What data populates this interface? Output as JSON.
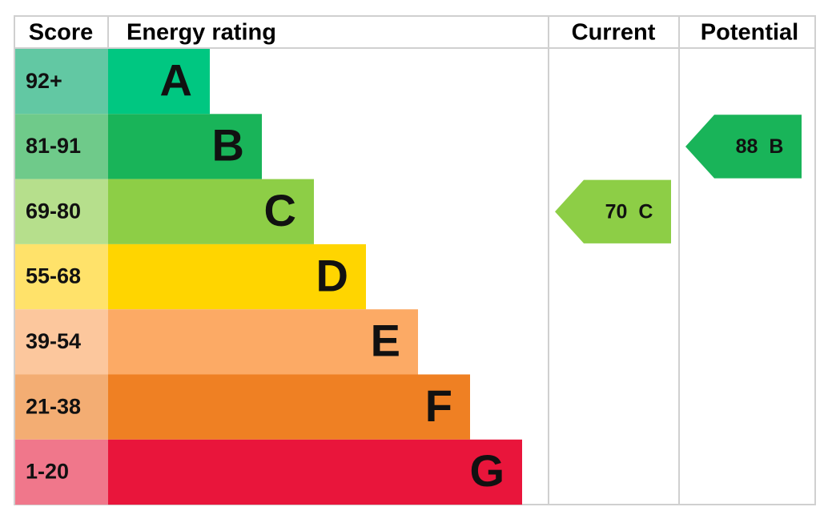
{
  "headers": [
    "Score",
    "Energy rating",
    "Current",
    "Potential"
  ],
  "rows": [
    {
      "score": "92+",
      "rating": "A",
      "color": "#00c781",
      "score_color": "#62c8a3"
    },
    {
      "score": "81-91",
      "rating": "B",
      "color": "#19b459",
      "score_color": "#6fca8a"
    },
    {
      "score": "69-80",
      "rating": "C",
      "color": "#8dce46",
      "score_color": "#b6df8c"
    },
    {
      "score": "55-68",
      "rating": "D",
      "color": "#ffd500",
      "score_color": "#ffe26a"
    },
    {
      "score": "39-54",
      "rating": "E",
      "color": "#fcaa65",
      "score_color": "#fcc79d"
    },
    {
      "score": "21-38",
      "rating": "F",
      "color": "#ef8023",
      "score_color": "#f3ad73"
    },
    {
      "score": "1-20",
      "rating": "G",
      "color": "#e9153b",
      "score_color": "#f0778b"
    }
  ],
  "current": {
    "value": 70,
    "rating": "C"
  },
  "potential": {
    "value": 88,
    "rating": "B"
  }
}
